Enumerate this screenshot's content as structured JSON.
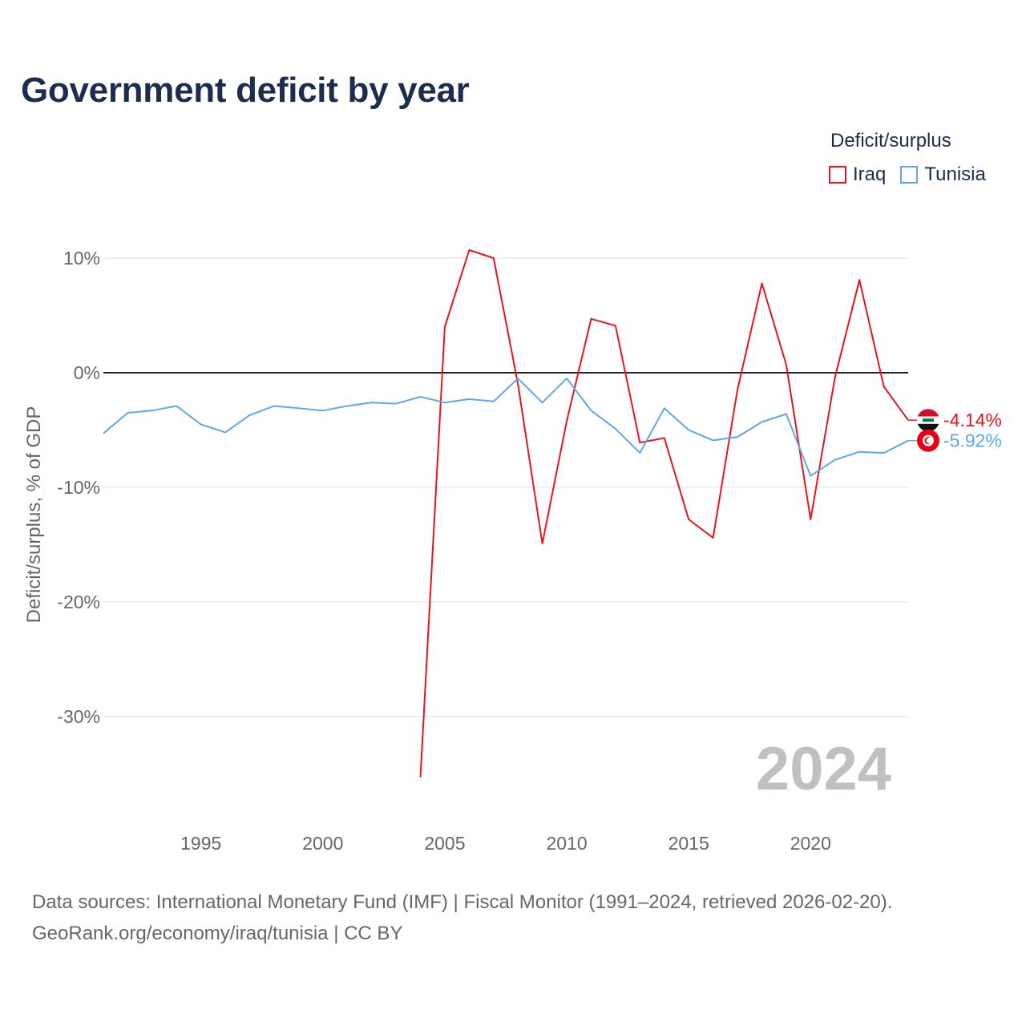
{
  "title": "Government deficit by year",
  "legend": {
    "title": "Deficit/surplus",
    "items": [
      {
        "name": "Iraq",
        "color": "#e8141c"
      },
      {
        "name": "Tunisia",
        "color": "#5ea8e8"
      }
    ]
  },
  "chart_data": {
    "type": "line",
    "title": "Government deficit by year",
    "xlabel": "",
    "ylabel": "Deficit/surplus, % of GDP",
    "xlim": [
      1991,
      2024
    ],
    "ylim": [
      -38,
      13
    ],
    "xticks": [
      1995,
      2000,
      2005,
      2010,
      2015,
      2020
    ],
    "xtick_labels": [
      "1995",
      "2000",
      "2005",
      "2010",
      "2015",
      "2020"
    ],
    "yticks": [
      10,
      0,
      -10,
      -20,
      -30
    ],
    "ytick_labels": [
      "10%",
      "0%",
      "-10%",
      "-20%",
      "-30%"
    ],
    "grid": true,
    "legend_position": "top-right",
    "annotation": "2024",
    "series": [
      {
        "name": "Iraq",
        "color": "#e8141c",
        "end_label": "-4.14%",
        "x": [
          2004,
          2005,
          2006,
          2007,
          2008,
          2009,
          2010,
          2011,
          2012,
          2013,
          2014,
          2015,
          2016,
          2017,
          2018,
          2019,
          2020,
          2021,
          2022,
          2023,
          2024
        ],
        "values": [
          -35.3,
          4.0,
          10.7,
          10.0,
          -1.0,
          -14.9,
          -4.2,
          4.7,
          4.1,
          -6.1,
          -5.7,
          -12.8,
          -14.4,
          -1.5,
          7.8,
          0.7,
          -12.8,
          -0.4,
          8.1,
          -1.2,
          -4.14
        ]
      },
      {
        "name": "Tunisia",
        "color": "#5ea8e8",
        "end_label": "-5.92%",
        "x": [
          1991,
          1992,
          1993,
          1994,
          1995,
          1996,
          1997,
          1998,
          1999,
          2000,
          2001,
          2002,
          2003,
          2004,
          2005,
          2006,
          2007,
          2008,
          2009,
          2010,
          2011,
          2012,
          2013,
          2014,
          2015,
          2016,
          2017,
          2018,
          2019,
          2020,
          2021,
          2022,
          2023,
          2024
        ],
        "values": [
          -5.3,
          -3.5,
          -3.3,
          -2.9,
          -4.5,
          -5.2,
          -3.7,
          -2.9,
          -3.1,
          -3.3,
          -2.9,
          -2.6,
          -2.7,
          -2.1,
          -2.6,
          -2.3,
          -2.5,
          -0.5,
          -2.6,
          -0.5,
          -3.3,
          -4.9,
          -7.0,
          -3.1,
          -5.0,
          -5.9,
          -5.6,
          -4.3,
          -3.6,
          -9.0,
          -7.6,
          -6.9,
          -7.0,
          -5.92
        ]
      }
    ]
  },
  "footer": {
    "line1": "Data sources: International Monetary Fund (IMF) | Fiscal Monitor (1991–2024, retrieved 2026-02-20).",
    "line2": "GeoRank.org/economy/iraq/tunisia | CC BY"
  },
  "icons": {
    "iraq": "iraq-flag-icon",
    "tunisia": "tunisia-flag-icon"
  }
}
